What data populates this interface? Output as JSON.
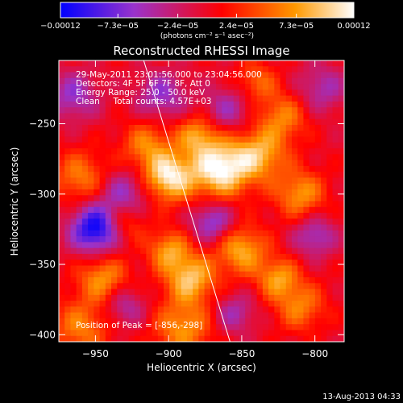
{
  "chart_data": {
    "type": "heatmap",
    "title": "Reconstructed RHESSI Image",
    "xlabel": "Heliocentric X (arcsec)",
    "ylabel": "Heliocentric Y (arcsec)",
    "xlim": [
      -975,
      -780
    ],
    "ylim": [
      -405,
      -205
    ],
    "x_ticks": [
      -950,
      -900,
      -850,
      -800
    ],
    "x_tick_labels": [
      "−950",
      "−900",
      "−850",
      "−800"
    ],
    "y_ticks": [
      -250,
      -300,
      -350,
      -400
    ],
    "y_tick_labels": [
      "−250",
      "−300",
      "−350",
      "−400"
    ],
    "colorbar": {
      "range": [
        -0.00012,
        0.00012
      ],
      "ticks": [
        -0.00012,
        -7.3e-05,
        -2.4e-05,
        2.4e-05,
        7.3e-05,
        0.00012
      ],
      "tick_labels": [
        "−0.00012",
        "−7.3e−05",
        "−2.4e−05",
        "2.4e−05",
        "7.3e−05",
        "0.00012"
      ],
      "unit_label": "(photons cm⁻² s⁻¹ asec⁻²)",
      "colors": [
        "#0000ff",
        "#9933cc",
        "#ff0000",
        "#ff9900",
        "#ffffff"
      ]
    },
    "annotations": [
      "29-May-2011 23:01:56.000 to 23:04:56.000",
      "Detectors: 4F 5F 6F 7F 8F, Att 0",
      "Energy Range: 25.0 - 50.0 keV",
      "Clean     Total counts: 4.57E+03"
    ],
    "peak_label": "Position of Peak = [-856,-298]",
    "peak": {
      "x": -856,
      "y": -298
    },
    "limb_line": [
      {
        "x": -917,
        "y": -205
      },
      {
        "x": -858,
        "y": -405
      }
    ],
    "blobs": [
      {
        "x": -900,
        "y": -288,
        "r": 12,
        "v": 0.00011
      },
      {
        "x": -865,
        "y": -282,
        "r": 14,
        "v": 0.00012
      },
      {
        "x": -880,
        "y": -258,
        "r": 10,
        "v": 7e-05
      },
      {
        "x": -915,
        "y": -265,
        "r": 12,
        "v": 6e-05
      },
      {
        "x": -838,
        "y": -272,
        "r": 13,
        "v": 8e-05
      },
      {
        "x": -822,
        "y": -245,
        "r": 12,
        "v": 6e-05
      },
      {
        "x": -810,
        "y": -300,
        "r": 12,
        "v": 7e-05
      },
      {
        "x": -960,
        "y": -288,
        "r": 13,
        "v": 6e-05
      },
      {
        "x": -930,
        "y": -320,
        "r": 10,
        "v": 5e-05
      },
      {
        "x": -945,
        "y": -360,
        "r": 12,
        "v": 7e-05
      },
      {
        "x": -900,
        "y": -340,
        "r": 10,
        "v": 7e-05
      },
      {
        "x": -885,
        "y": -360,
        "r": 12,
        "v": 9e-05
      },
      {
        "x": -850,
        "y": -340,
        "r": 12,
        "v": 8e-05
      },
      {
        "x": -825,
        "y": -360,
        "r": 10,
        "v": 7e-05
      },
      {
        "x": -810,
        "y": -380,
        "r": 12,
        "v": 6e-05
      },
      {
        "x": -960,
        "y": -395,
        "r": 14,
        "v": 6e-05
      },
      {
        "x": -890,
        "y": -395,
        "r": 14,
        "v": 7e-05
      },
      {
        "x": -840,
        "y": -220,
        "r": 10,
        "v": 5e-05
      },
      {
        "x": -965,
        "y": -230,
        "r": 12,
        "v": -6e-05
      },
      {
        "x": -950,
        "y": -325,
        "r": 12,
        "v": -0.00012
      },
      {
        "x": -930,
        "y": -300,
        "r": 12,
        "v": -6e-05
      },
      {
        "x": -870,
        "y": -320,
        "r": 10,
        "v": -7e-05
      },
      {
        "x": -860,
        "y": -240,
        "r": 12,
        "v": -5e-05
      },
      {
        "x": -800,
        "y": -330,
        "r": 10,
        "v": -6e-05
      },
      {
        "x": -930,
        "y": -380,
        "r": 10,
        "v": -5e-05
      },
      {
        "x": -855,
        "y": -385,
        "r": 10,
        "v": -5e-05
      },
      {
        "x": -795,
        "y": -225,
        "r": 12,
        "v": -5e-05
      },
      {
        "x": -905,
        "y": -230,
        "r": 12,
        "v": -6e-05
      }
    ]
  },
  "footer": {
    "timestamp": "13-Aug-2013 04:33"
  }
}
